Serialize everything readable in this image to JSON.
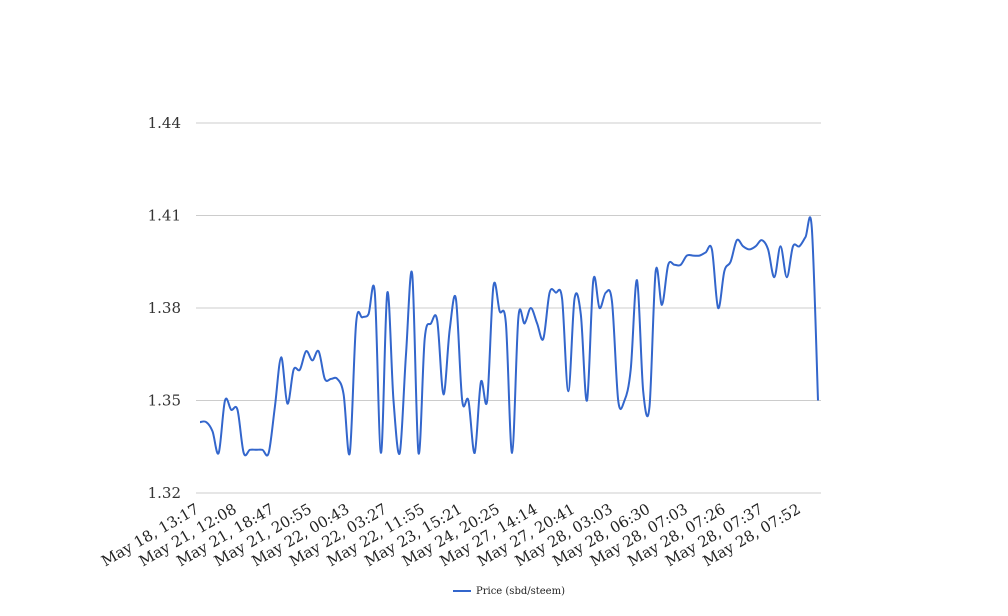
{
  "chart_data": {
    "type": "line",
    "title": "",
    "xlabel": "",
    "ylabel": "",
    "ylim": [
      1.32,
      1.44
    ],
    "y_ticks": [
      "1.32",
      "1.35",
      "1.38",
      "1.41",
      "1.44"
    ],
    "grid": true,
    "legend_position": "bottom-center",
    "x_tick_labels": [
      "May 18, 13:17",
      "May 21, 12:08",
      "May 21, 18:47",
      "May 21, 20:55",
      "May 22, 00:43",
      "May 22, 03:27",
      "May 22, 11:55",
      "May 23, 15:21",
      "May 24, 20:25",
      "May 27, 14:14",
      "May 27, 20:41",
      "May 28, 03:03",
      "May 28, 06:30",
      "May 28, 07:03",
      "May 28, 07:26",
      "May 28, 07:37",
      "May 28, 07:52"
    ],
    "series": [
      {
        "name": "Price (sbd/steem)",
        "color": "#3366cc",
        "values": [
          1.343,
          1.343,
          1.34,
          1.333,
          1.35,
          1.347,
          1.347,
          1.333,
          1.334,
          1.334,
          1.334,
          1.333,
          1.348,
          1.364,
          1.349,
          1.36,
          1.36,
          1.366,
          1.363,
          1.366,
          1.357,
          1.357,
          1.357,
          1.352,
          1.333,
          1.375,
          1.377,
          1.378,
          1.385,
          1.333,
          1.385,
          1.35,
          1.333,
          1.365,
          1.391,
          1.333,
          1.37,
          1.375,
          1.376,
          1.352,
          1.373,
          1.383,
          1.35,
          1.35,
          1.333,
          1.356,
          1.35,
          1.387,
          1.379,
          1.375,
          1.333,
          1.377,
          1.375,
          1.38,
          1.375,
          1.37,
          1.385,
          1.385,
          1.383,
          1.353,
          1.383,
          1.378,
          1.35,
          1.389,
          1.38,
          1.385,
          1.382,
          1.35,
          1.35,
          1.36,
          1.389,
          1.353,
          1.348,
          1.392,
          1.381,
          1.394,
          1.394,
          1.394,
          1.397,
          1.397,
          1.397,
          1.398,
          1.399,
          1.38,
          1.392,
          1.395,
          1.402,
          1.4,
          1.399,
          1.4,
          1.402,
          1.399,
          1.39,
          1.4,
          1.39,
          1.4,
          1.4,
          1.403,
          1.406,
          1.35
        ]
      }
    ]
  }
}
